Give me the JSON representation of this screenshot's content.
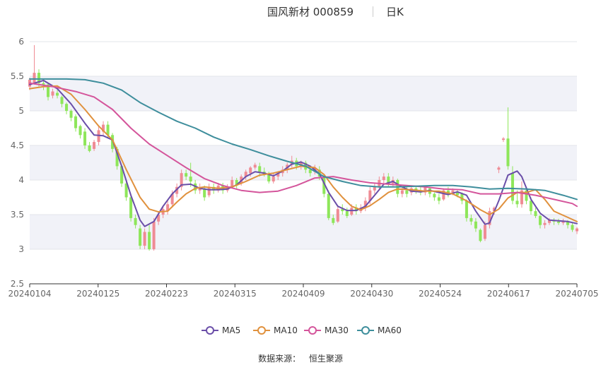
{
  "header": {
    "stock_name": "国风新材 000859",
    "period": "日K"
  },
  "source": {
    "label": "数据来源：",
    "value": "恒生聚源"
  },
  "chart_data": {
    "type": "candlestick",
    "y_ticks": [
      "6",
      "5.5",
      "5",
      "4.5",
      "4",
      "3.5",
      "3",
      "2.5"
    ],
    "ylim": [
      2.5,
      6
    ],
    "x_ticks": [
      "20240104",
      "20240125",
      "20240223",
      "20240315",
      "20240409",
      "20240430",
      "20240524",
      "20240617",
      "20240705"
    ],
    "grid": true,
    "legend_position": "bottom",
    "colors": {
      "up": "#ef8b94",
      "down": "#8ee65a"
    },
    "candles": [
      [
        5.35,
        5.45,
        5.3,
        5.48
      ],
      [
        5.4,
        5.55,
        5.38,
        5.95
      ],
      [
        5.55,
        5.4,
        5.35,
        5.6
      ],
      [
        5.4,
        5.38,
        5.3,
        5.45
      ],
      [
        5.38,
        5.2,
        5.15,
        5.4
      ],
      [
        5.22,
        5.28,
        5.18,
        5.32
      ],
      [
        5.26,
        5.22,
        5.18,
        5.3
      ],
      [
        5.2,
        5.1,
        5.05,
        5.22
      ],
      [
        5.1,
        5.0,
        4.95,
        5.12
      ],
      [
        5.0,
        4.9,
        4.85,
        5.02
      ],
      [
        4.92,
        4.75,
        4.7,
        4.95
      ],
      [
        4.78,
        4.65,
        4.6,
        4.8
      ],
      [
        4.7,
        4.5,
        4.45,
        4.75
      ],
      [
        4.5,
        4.42,
        4.4,
        4.55
      ],
      [
        4.45,
        4.55,
        4.42,
        4.58
      ],
      [
        4.55,
        4.72,
        4.5,
        4.78
      ],
      [
        4.7,
        4.8,
        4.65,
        4.85
      ],
      [
        4.8,
        4.65,
        4.6,
        4.85
      ],
      [
        4.65,
        4.45,
        4.4,
        4.68
      ],
      [
        4.45,
        4.2,
        4.15,
        4.48
      ],
      [
        4.2,
        3.95,
        3.9,
        4.22
      ],
      [
        3.95,
        3.75,
        3.7,
        3.98
      ],
      [
        3.75,
        3.45,
        3.4,
        3.8
      ],
      [
        3.45,
        3.35,
        3.3,
        3.5
      ],
      [
        3.3,
        3.05,
        3.0,
        3.35
      ],
      [
        3.05,
        3.25,
        3.0,
        3.3
      ],
      [
        3.25,
        3.0,
        2.98,
        3.35
      ],
      [
        3.0,
        3.4,
        2.98,
        3.45
      ],
      [
        3.4,
        3.5,
        3.35,
        3.55
      ],
      [
        3.5,
        3.58,
        3.45,
        3.62
      ],
      [
        3.55,
        3.65,
        3.5,
        3.7
      ],
      [
        3.65,
        3.8,
        3.6,
        3.85
      ],
      [
        3.8,
        3.9,
        3.75,
        3.95
      ],
      [
        3.9,
        4.1,
        3.85,
        4.15
      ],
      [
        4.1,
        4.05,
        4.0,
        4.15
      ],
      [
        4.05,
        3.98,
        3.9,
        4.25
      ],
      [
        3.95,
        3.85,
        3.8,
        4.0
      ],
      [
        3.85,
        3.9,
        3.8,
        3.95
      ],
      [
        3.88,
        3.75,
        3.7,
        3.92
      ],
      [
        3.78,
        3.9,
        3.75,
        3.95
      ],
      [
        3.9,
        3.85,
        3.8,
        3.95
      ],
      [
        3.85,
        3.92,
        3.82,
        3.96
      ],
      [
        3.92,
        3.85,
        3.8,
        3.96
      ],
      [
        3.85,
        3.9,
        3.82,
        3.94
      ],
      [
        3.9,
        4.0,
        3.88,
        4.05
      ],
      [
        4.0,
        3.92,
        3.88,
        4.03
      ],
      [
        3.95,
        4.05,
        3.92,
        4.08
      ],
      [
        4.05,
        4.12,
        4.0,
        4.15
      ],
      [
        4.1,
        4.18,
        4.05,
        4.2
      ],
      [
        4.18,
        4.22,
        4.15,
        4.25
      ],
      [
        4.2,
        4.12,
        4.05,
        4.25
      ],
      [
        4.12,
        4.08,
        4.05,
        4.18
      ],
      [
        4.08,
        3.98,
        3.95,
        4.12
      ],
      [
        3.98,
        4.05,
        3.95,
        4.1
      ],
      [
        4.05,
        4.1,
        4.0,
        4.12
      ],
      [
        4.1,
        4.15,
        4.05,
        4.2
      ],
      [
        4.15,
        4.22,
        4.1,
        4.25
      ],
      [
        4.22,
        4.28,
        4.18,
        4.35
      ],
      [
        4.28,
        4.2,
        4.15,
        4.32
      ],
      [
        4.2,
        4.25,
        4.15,
        4.28
      ],
      [
        4.25,
        4.15,
        4.1,
        4.28
      ],
      [
        4.15,
        4.1,
        4.05,
        4.2
      ],
      [
        4.12,
        4.18,
        4.08,
        4.22
      ],
      [
        4.15,
        4.05,
        4.0,
        4.2
      ],
      [
        4.05,
        3.8,
        3.75,
        4.08
      ],
      [
        3.8,
        3.45,
        3.42,
        3.85
      ],
      [
        3.45,
        3.38,
        3.35,
        3.5
      ],
      [
        3.4,
        3.58,
        3.38,
        3.62
      ],
      [
        3.58,
        3.55,
        3.5,
        3.65
      ],
      [
        3.55,
        3.48,
        3.45,
        3.6
      ],
      [
        3.5,
        3.6,
        3.48,
        3.65
      ],
      [
        3.6,
        3.55,
        3.5,
        3.65
      ],
      [
        3.55,
        3.6,
        3.52,
        3.65
      ],
      [
        3.6,
        3.7,
        3.55,
        3.75
      ],
      [
        3.7,
        3.85,
        3.65,
        3.9
      ],
      [
        3.85,
        3.9,
        3.8,
        3.95
      ],
      [
        3.9,
        4.0,
        3.85,
        4.05
      ],
      [
        4.0,
        4.05,
        3.95,
        4.1
      ],
      [
        4.05,
        3.95,
        3.9,
        4.1
      ],
      [
        3.95,
        4.0,
        3.9,
        4.05
      ],
      [
        4.0,
        3.8,
        3.75,
        4.02
      ],
      [
        3.8,
        3.85,
        3.75,
        3.9
      ],
      [
        3.85,
        3.8,
        3.75,
        3.9
      ],
      [
        3.82,
        3.88,
        3.78,
        3.92
      ],
      [
        3.88,
        3.85,
        3.8,
        3.9
      ],
      [
        3.85,
        3.82,
        3.78,
        3.9
      ],
      [
        3.82,
        3.9,
        3.78,
        3.92
      ],
      [
        3.88,
        3.8,
        3.75,
        3.9
      ],
      [
        3.8,
        3.75,
        3.7,
        3.82
      ],
      [
        3.75,
        3.7,
        3.65,
        3.8
      ],
      [
        3.72,
        3.85,
        3.7,
        3.88
      ],
      [
        3.85,
        3.8,
        3.75,
        3.9
      ],
      [
        3.8,
        3.85,
        3.78,
        3.88
      ],
      [
        3.82,
        3.78,
        3.75,
        3.85
      ],
      [
        3.8,
        3.7,
        3.65,
        3.82
      ],
      [
        3.7,
        3.45,
        3.4,
        3.72
      ],
      [
        3.45,
        3.4,
        3.35,
        3.5
      ],
      [
        3.4,
        3.3,
        3.25,
        3.45
      ],
      [
        3.28,
        3.12,
        3.1,
        3.3
      ],
      [
        3.15,
        3.35,
        3.12,
        3.4
      ],
      [
        3.35,
        3.55,
        3.3,
        3.6
      ],
      [
        3.55,
        3.6,
        3.5,
        3.62
      ],
      [
        4.15,
        4.18,
        4.1,
        4.2
      ],
      [
        4.58,
        4.6,
        4.55,
        4.62
      ],
      [
        4.6,
        4.2,
        4.15,
        5.05
      ],
      [
        4.1,
        3.7,
        3.65,
        4.2
      ],
      [
        3.7,
        3.65,
        3.6,
        3.85
      ],
      [
        3.65,
        3.85,
        3.6,
        3.98
      ],
      [
        3.85,
        3.7,
        3.65,
        3.9
      ],
      [
        3.7,
        3.55,
        3.5,
        3.75
      ],
      [
        3.55,
        3.48,
        3.45,
        3.6
      ],
      [
        3.48,
        3.35,
        3.3,
        3.5
      ],
      [
        3.35,
        3.38,
        3.3,
        3.42
      ],
      [
        3.38,
        3.42,
        3.35,
        3.45
      ],
      [
        3.42,
        3.4,
        3.35,
        3.45
      ],
      [
        3.4,
        3.38,
        3.35,
        3.44
      ],
      [
        3.38,
        3.4,
        3.35,
        3.44
      ],
      [
        3.4,
        3.35,
        3.3,
        3.42
      ],
      [
        3.35,
        3.28,
        3.25,
        3.38
      ],
      [
        3.26,
        3.3,
        3.22,
        3.32
      ]
    ],
    "series": [
      {
        "name": "MA5",
        "color": "#6a4ea8",
        "values": [
          [
            0,
            5.38
          ],
          [
            3,
            5.44
          ],
          [
            6,
            5.32
          ],
          [
            9,
            5.1
          ],
          [
            12,
            4.82
          ],
          [
            14,
            4.65
          ],
          [
            16,
            4.64
          ],
          [
            18,
            4.58
          ],
          [
            20,
            4.2
          ],
          [
            22,
            3.78
          ],
          [
            24,
            3.42
          ],
          [
            25,
            3.33
          ],
          [
            27,
            3.4
          ],
          [
            29,
            3.62
          ],
          [
            31,
            3.8
          ],
          [
            33,
            3.93
          ],
          [
            35,
            3.94
          ],
          [
            37,
            3.88
          ],
          [
            39,
            3.86
          ],
          [
            41,
            3.86
          ],
          [
            43,
            3.87
          ],
          [
            45,
            3.93
          ],
          [
            47,
            4.05
          ],
          [
            49,
            4.12
          ],
          [
            51,
            4.1
          ],
          [
            53,
            4.06
          ],
          [
            55,
            4.13
          ],
          [
            57,
            4.23
          ],
          [
            59,
            4.26
          ],
          [
            61,
            4.2
          ],
          [
            63,
            4.09
          ],
          [
            65,
            3.82
          ],
          [
            67,
            3.62
          ],
          [
            69,
            3.56
          ],
          [
            71,
            3.56
          ],
          [
            73,
            3.62
          ],
          [
            75,
            3.78
          ],
          [
            77,
            3.94
          ],
          [
            79,
            3.98
          ],
          [
            81,
            3.9
          ],
          [
            83,
            3.84
          ],
          [
            85,
            3.83
          ],
          [
            87,
            3.85
          ],
          [
            89,
            3.82
          ],
          [
            91,
            3.79
          ],
          [
            93,
            3.83
          ],
          [
            95,
            3.78
          ],
          [
            97,
            3.55
          ],
          [
            99,
            3.36
          ],
          [
            100,
            3.38
          ],
          [
            102,
            3.7
          ],
          [
            104,
            4.07
          ],
          [
            106,
            4.13
          ],
          [
            107,
            4.05
          ],
          [
            109,
            3.72
          ],
          [
            111,
            3.52
          ],
          [
            113,
            3.42
          ],
          [
            115,
            3.41
          ],
          [
            117,
            3.4
          ],
          [
            119,
            3.37
          ]
        ]
      },
      {
        "name": "MA10",
        "color": "#e0913d",
        "values": [
          [
            0,
            5.32
          ],
          [
            3,
            5.35
          ],
          [
            6,
            5.36
          ],
          [
            9,
            5.24
          ],
          [
            12,
            5.02
          ],
          [
            15,
            4.78
          ],
          [
            18,
            4.58
          ],
          [
            21,
            4.15
          ],
          [
            24,
            3.75
          ],
          [
            26,
            3.58
          ],
          [
            28,
            3.54
          ],
          [
            30,
            3.55
          ],
          [
            32,
            3.68
          ],
          [
            34,
            3.8
          ],
          [
            36,
            3.88
          ],
          [
            38,
            3.9
          ],
          [
            41,
            3.88
          ],
          [
            44,
            3.9
          ],
          [
            47,
            3.98
          ],
          [
            50,
            4.07
          ],
          [
            53,
            4.1
          ],
          [
            56,
            4.15
          ],
          [
            59,
            4.2
          ],
          [
            62,
            4.18
          ],
          [
            64,
            4.08
          ],
          [
            66,
            3.9
          ],
          [
            68,
            3.75
          ],
          [
            70,
            3.62
          ],
          [
            72,
            3.57
          ],
          [
            74,
            3.63
          ],
          [
            76,
            3.72
          ],
          [
            78,
            3.82
          ],
          [
            80,
            3.87
          ],
          [
            83,
            3.86
          ],
          [
            86,
            3.84
          ],
          [
            89,
            3.84
          ],
          [
            92,
            3.8
          ],
          [
            95,
            3.7
          ],
          [
            98,
            3.57
          ],
          [
            100,
            3.5
          ],
          [
            102,
            3.58
          ],
          [
            104,
            3.74
          ],
          [
            106,
            3.82
          ],
          [
            108,
            3.82
          ],
          [
            110,
            3.86
          ],
          [
            112,
            3.72
          ],
          [
            114,
            3.55
          ],
          [
            117,
            3.46
          ],
          [
            119,
            3.4
          ]
        ]
      },
      {
        "name": "MA30",
        "color": "#d4559b",
        "values": [
          [
            0,
            5.4
          ],
          [
            5,
            5.35
          ],
          [
            10,
            5.28
          ],
          [
            14,
            5.2
          ],
          [
            18,
            5.02
          ],
          [
            22,
            4.75
          ],
          [
            26,
            4.52
          ],
          [
            30,
            4.35
          ],
          [
            34,
            4.18
          ],
          [
            38,
            4.02
          ],
          [
            42,
            3.92
          ],
          [
            46,
            3.85
          ],
          [
            50,
            3.82
          ],
          [
            54,
            3.84
          ],
          [
            58,
            3.92
          ],
          [
            62,
            4.03
          ],
          [
            66,
            4.05
          ],
          [
            70,
            4.0
          ],
          [
            74,
            3.96
          ],
          [
            78,
            3.94
          ],
          [
            82,
            3.92
          ],
          [
            86,
            3.9
          ],
          [
            90,
            3.87
          ],
          [
            94,
            3.86
          ],
          [
            98,
            3.8
          ],
          [
            102,
            3.8
          ],
          [
            106,
            3.82
          ],
          [
            110,
            3.78
          ],
          [
            114,
            3.72
          ],
          [
            118,
            3.66
          ],
          [
            119,
            3.62
          ]
        ]
      },
      {
        "name": "MA60",
        "color": "#3e8e9c",
        "values": [
          [
            0,
            5.46
          ],
          [
            8,
            5.46
          ],
          [
            12,
            5.45
          ],
          [
            16,
            5.4
          ],
          [
            20,
            5.3
          ],
          [
            24,
            5.12
          ],
          [
            28,
            4.98
          ],
          [
            32,
            4.85
          ],
          [
            36,
            4.75
          ],
          [
            40,
            4.62
          ],
          [
            44,
            4.52
          ],
          [
            48,
            4.44
          ],
          [
            52,
            4.35
          ],
          [
            56,
            4.27
          ],
          [
            60,
            4.2
          ],
          [
            64,
            4.05
          ],
          [
            68,
            3.98
          ],
          [
            72,
            3.92
          ],
          [
            76,
            3.9
          ],
          [
            80,
            3.9
          ],
          [
            84,
            3.91
          ],
          [
            88,
            3.92
          ],
          [
            92,
            3.92
          ],
          [
            96,
            3.9
          ],
          [
            100,
            3.87
          ],
          [
            104,
            3.88
          ],
          [
            108,
            3.87
          ],
          [
            112,
            3.85
          ],
          [
            116,
            3.78
          ],
          [
            119,
            3.72
          ]
        ]
      }
    ]
  }
}
